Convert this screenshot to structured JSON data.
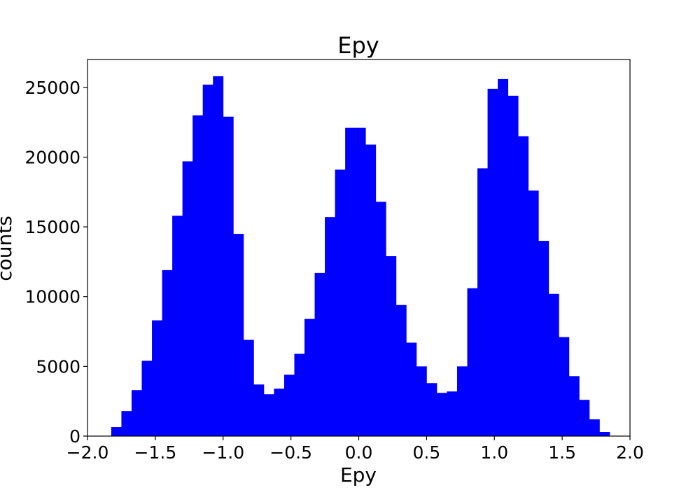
{
  "chart_data": {
    "type": "bar",
    "title": "Epy",
    "xlabel": "Epy",
    "ylabel": "counts",
    "xlim": [
      -2.0,
      2.0
    ],
    "ylim": [
      0,
      27000
    ],
    "grid": false,
    "bar_color": "#0000ff",
    "xticks": [
      "−2.0",
      "−1.5",
      "−1.0",
      "−0.5",
      "0.0",
      "0.5",
      "1.0",
      "1.5",
      "2.0"
    ],
    "xtick_values": [
      -2.0,
      -1.5,
      -1.0,
      -0.5,
      0.0,
      0.5,
      1.0,
      1.5,
      2.0
    ],
    "yticks": [
      "0",
      "5000",
      "10000",
      "15000",
      "20000",
      "25000"
    ],
    "ytick_values": [
      0,
      5000,
      10000,
      15000,
      20000,
      25000
    ],
    "bin_edges": [
      -1.825,
      -1.75,
      -1.675,
      -1.6,
      -1.525,
      -1.45,
      -1.375,
      -1.3,
      -1.225,
      -1.15,
      -1.075,
      -1.0,
      -0.925,
      -0.85,
      -0.775,
      -0.7,
      -0.625,
      -0.55,
      -0.475,
      -0.4,
      -0.325,
      -0.25,
      -0.175,
      -0.1,
      -0.025,
      0.05,
      0.125,
      0.2,
      0.275,
      0.35,
      0.425,
      0.5,
      0.575,
      0.65,
      0.725,
      0.8,
      0.875,
      0.95,
      1.025,
      1.1,
      1.175,
      1.25,
      1.325,
      1.4,
      1.475,
      1.55,
      1.625,
      1.7,
      1.775,
      1.85
    ],
    "counts": [
      650,
      1800,
      3300,
      5400,
      8300,
      11900,
      15800,
      19700,
      23000,
      25200,
      25800,
      22900,
      14500,
      6900,
      3700,
      3000,
      3400,
      4400,
      5900,
      8400,
      11700,
      15700,
      19100,
      22100,
      22100,
      20900,
      16800,
      12900,
      9400,
      6700,
      5000,
      3800,
      3100,
      3200,
      5000,
      10600,
      19200,
      24900,
      25600,
      24400,
      21500,
      17600,
      14000,
      10200,
      7100,
      4300,
      2600,
      1200,
      300
    ]
  }
}
